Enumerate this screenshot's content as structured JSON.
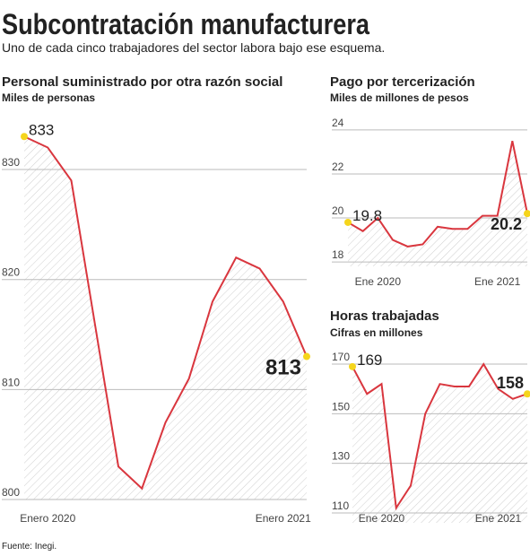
{
  "title": "Subcontratación manufacturera",
  "subtitle": "Uno de cada cinco trabajadores del sector labora bajo ese esquema.",
  "source": "Fuente: Inegi.",
  "chart_data": [
    {
      "type": "line",
      "title": "Personal suministrado por otra razón social",
      "subtitle": "Miles de personas",
      "categories": [
        null,
        "Enero 2020",
        null,
        null,
        null,
        null,
        null,
        null,
        null,
        null,
        null,
        "Enero 2021",
        null
      ],
      "values": [
        833,
        832,
        829,
        816,
        803,
        801,
        807,
        811,
        818,
        822,
        821,
        818,
        813
      ],
      "value_labels": [
        "833",
        null,
        null,
        null,
        null,
        null,
        null,
        null,
        null,
        null,
        null,
        null,
        "813"
      ],
      "color": "#d9363e",
      "ylim": [
        800,
        834
      ],
      "yticks": [
        800,
        810,
        820,
        830
      ],
      "grid": true
    },
    {
      "type": "line",
      "title": "Pago por tercerización",
      "subtitle": "Miles de millones de pesos",
      "categories": [
        null,
        null,
        "Ene 2020",
        null,
        null,
        null,
        null,
        null,
        null,
        null,
        "Ene 2021",
        null,
        null
      ],
      "values": [
        19.8,
        19.4,
        20.0,
        19.0,
        18.7,
        18.8,
        19.6,
        19.5,
        19.5,
        20.1,
        20.1,
        23.5,
        20.2
      ],
      "value_labels": [
        "19.8",
        null,
        null,
        null,
        null,
        null,
        null,
        null,
        null,
        null,
        null,
        null,
        "20.2"
      ],
      "color": "#d9363e",
      "ylim": [
        17.8,
        24.2
      ],
      "yticks": [
        18,
        20,
        22,
        24
      ],
      "grid": true
    },
    {
      "type": "line",
      "title": "Horas trabajadas",
      "subtitle": "Cifras en millones",
      "categories": [
        null,
        null,
        "Ene 2020",
        null,
        null,
        null,
        null,
        null,
        null,
        null,
        "Ene 2021",
        null,
        null
      ],
      "values": [
        169,
        158,
        162,
        112,
        121,
        150,
        162,
        161,
        161,
        170,
        160,
        156,
        158
      ],
      "value_labels": [
        "169",
        null,
        null,
        null,
        null,
        null,
        null,
        null,
        null,
        null,
        null,
        null,
        "158"
      ],
      "color": "#d9363e",
      "ylim": [
        106,
        174
      ],
      "yticks": [
        110,
        130,
        150,
        170
      ],
      "grid": true
    }
  ]
}
